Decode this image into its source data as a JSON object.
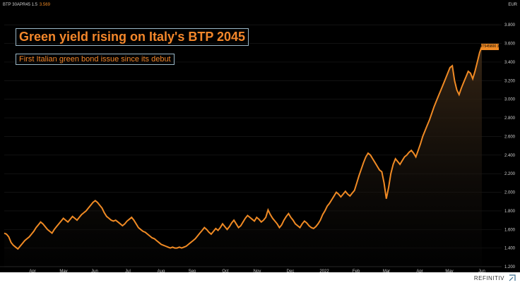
{
  "header": {
    "ticker": "BTP 30APR45 1.5",
    "last": "3.569",
    "currency": "EUR"
  },
  "title": "Green yield rising on Italy's BTP 2045",
  "subtitle": "First Italian green bond issue since its debut",
  "last_tag": "IT545800",
  "footer": {
    "brand": "REFINITIV",
    "brand_icon": "refinitiv-logo-icon"
  },
  "colors": {
    "line": "#f08a24",
    "text": "#cfcfcf",
    "background": "#000000",
    "accent_box": "#9bb8c8"
  },
  "chart_data": {
    "type": "line",
    "series": [
      {
        "values": [
          1.56,
          1.55,
          1.52,
          1.46,
          1.43,
          1.41,
          1.39,
          1.42,
          1.45,
          1.48,
          1.5,
          1.52,
          1.55,
          1.58,
          1.62,
          1.65,
          1.68,
          1.66,
          1.63,
          1.6,
          1.58,
          1.56,
          1.6,
          1.63,
          1.66,
          1.69,
          1.72,
          1.7,
          1.68,
          1.71,
          1.74,
          1.72,
          1.7,
          1.73,
          1.76,
          1.78,
          1.8,
          1.83,
          1.86,
          1.89,
          1.91,
          1.89,
          1.86,
          1.83,
          1.78,
          1.74,
          1.72,
          1.7,
          1.69,
          1.7,
          1.68,
          1.66,
          1.64,
          1.66,
          1.69,
          1.71,
          1.73,
          1.7,
          1.66,
          1.62,
          1.6,
          1.58,
          1.57,
          1.55,
          1.53,
          1.51,
          1.5,
          1.48,
          1.46,
          1.44,
          1.43,
          1.42,
          1.41,
          1.4,
          1.41,
          1.4,
          1.4,
          1.41,
          1.4,
          1.41,
          1.42,
          1.44,
          1.46,
          1.48,
          1.5,
          1.53,
          1.56,
          1.59,
          1.62,
          1.6,
          1.57,
          1.55,
          1.58,
          1.61,
          1.59,
          1.62,
          1.66,
          1.63,
          1.6,
          1.63,
          1.67,
          1.7,
          1.66,
          1.62,
          1.64,
          1.68,
          1.72,
          1.75,
          1.73,
          1.71,
          1.69,
          1.73,
          1.71,
          1.68,
          1.7,
          1.73,
          1.81,
          1.76,
          1.72,
          1.69,
          1.66,
          1.62,
          1.65,
          1.7,
          1.74,
          1.77,
          1.73,
          1.7,
          1.66,
          1.64,
          1.62,
          1.66,
          1.69,
          1.67,
          1.64,
          1.62,
          1.61,
          1.63,
          1.66,
          1.7,
          1.76,
          1.8,
          1.85,
          1.88,
          1.92,
          1.96,
          2.0,
          1.98,
          1.95,
          1.98,
          2.01,
          1.98,
          1.96,
          1.99,
          2.02,
          2.1,
          2.18,
          2.25,
          2.32,
          2.38,
          2.42,
          2.4,
          2.36,
          2.32,
          2.28,
          2.24,
          2.22,
          2.1,
          1.93,
          2.05,
          2.2,
          2.3,
          2.36,
          2.33,
          2.3,
          2.34,
          2.38,
          2.4,
          2.43,
          2.45,
          2.42,
          2.38,
          2.45,
          2.52,
          2.6,
          2.66,
          2.72,
          2.78,
          2.85,
          2.92,
          2.98,
          3.04,
          3.1,
          3.16,
          3.22,
          3.28,
          3.34,
          3.36,
          3.2,
          3.1,
          3.05,
          3.12,
          3.18,
          3.24,
          3.3,
          3.28,
          3.22,
          3.3,
          3.4,
          3.5,
          3.569
        ]
      }
    ],
    "ylim": [
      1.2,
      3.9
    ],
    "yticks": [
      "1.200",
      "1.400",
      "1.600",
      "1.800",
      "2.000",
      "2.200",
      "2.400",
      "2.600",
      "2.800",
      "3.000",
      "3.200",
      "3.400",
      "3.600",
      "3.800"
    ],
    "xticks": [
      "Apr",
      "May",
      "Jun",
      "Jul",
      "Aug",
      "Sep",
      "Oct",
      "Nov",
      "Dec",
      "2022",
      "Feb",
      "Mar",
      "Apr",
      "May",
      "Jun"
    ]
  }
}
